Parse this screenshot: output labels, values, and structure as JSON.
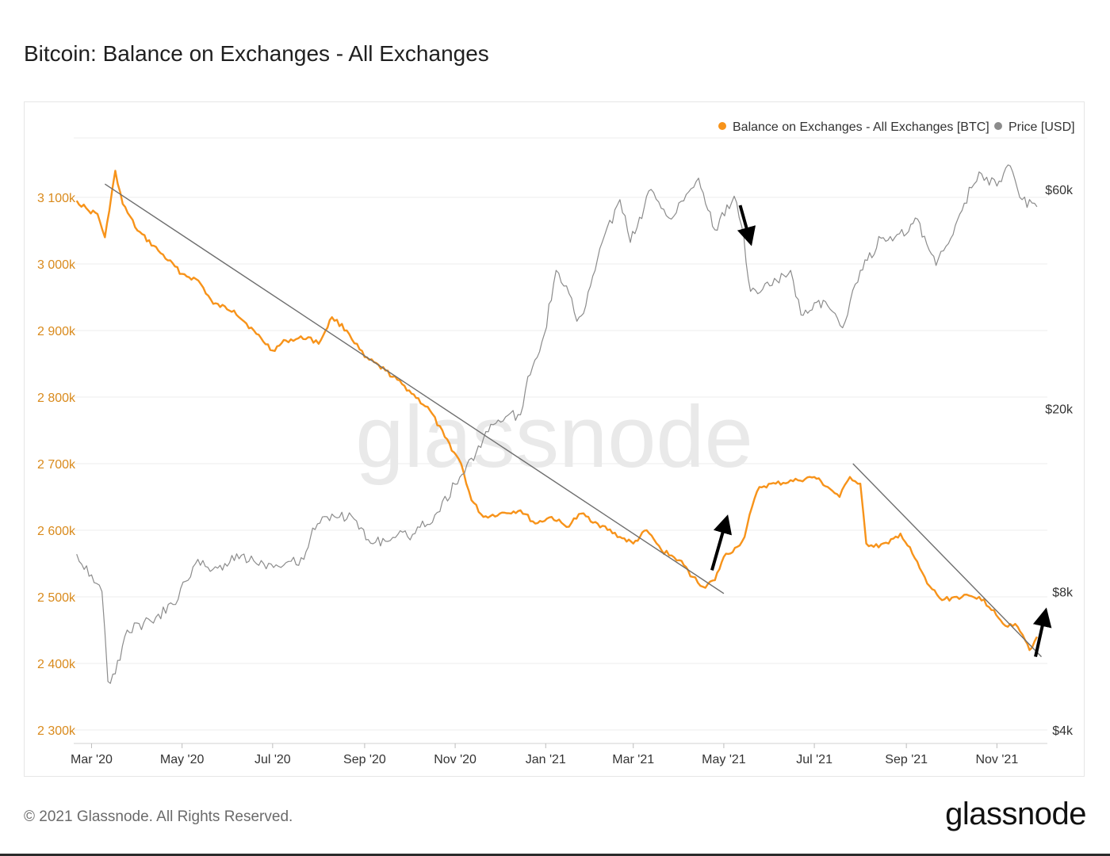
{
  "title": "Bitcoin: Balance on Exchanges - All Exchanges",
  "footer": {
    "copyright": "© 2021 Glassnode. All Rights Reserved.",
    "logo": "glassnode"
  },
  "watermark": "glassnode",
  "colors": {
    "balance": "#f7931a",
    "price": "#8c8c8c",
    "trendline": "#6e6e6e",
    "arrow": "#000000",
    "grid": "#ececec",
    "axis_left": "#d98a1c",
    "axis_right": "#333333"
  },
  "chart_data": {
    "type": "line",
    "title": "Bitcoin: Balance on Exchanges - All Exchanges",
    "legend": [
      {
        "label": "Balance on Exchanges - All Exchanges [BTC]",
        "color": "#f7931a"
      },
      {
        "label": "Price [USD]",
        "color": "#8c8c8c"
      }
    ],
    "legend_position": "top-right",
    "x_ticks": [
      "Mar '20",
      "May '20",
      "Jul '20",
      "Sep '20",
      "Nov '20",
      "Jan '21",
      "Mar '21",
      "May '21",
      "Jul '21",
      "Sep '21",
      "Nov '21"
    ],
    "y_left_ticks": [
      {
        "value": 3100000,
        "label": "3 100k"
      },
      {
        "value": 3000000,
        "label": "3 000k"
      },
      {
        "value": 2900000,
        "label": "2 900k"
      },
      {
        "value": 2800000,
        "label": "2 800k"
      },
      {
        "value": 2700000,
        "label": "2 700k"
      },
      {
        "value": 2600000,
        "label": "2 600k"
      },
      {
        "value": 2500000,
        "label": "2 500k"
      },
      {
        "value": 2400000,
        "label": "2 400k"
      },
      {
        "value": 2300000,
        "label": "2 300k"
      }
    ],
    "y_left_range": [
      2300000,
      3100000
    ],
    "y_right_ticks": [
      {
        "value": 60000,
        "label": "$60k"
      },
      {
        "value": 20000,
        "label": "$20k"
      },
      {
        "value": 8000,
        "label": "$8k"
      },
      {
        "value": 4000,
        "label": "$4k"
      }
    ],
    "y_right_scale": "log",
    "y_right_range": [
      4000,
      60000
    ],
    "grid": true,
    "series": [
      {
        "name": "Balance on Exchanges - All Exchanges [BTC]",
        "axis": "left",
        "points": [
          [
            "2020-02-20",
            3095000
          ],
          [
            "2020-02-28",
            3080000
          ],
          [
            "2020-03-05",
            3075000
          ],
          [
            "2020-03-10",
            3040000
          ],
          [
            "2020-03-13",
            3080000
          ],
          [
            "2020-03-17",
            3140000
          ],
          [
            "2020-03-22",
            3090000
          ],
          [
            "2020-04-01",
            3050000
          ],
          [
            "2020-04-15",
            3020000
          ],
          [
            "2020-05-01",
            2985000
          ],
          [
            "2020-05-12",
            2975000
          ],
          [
            "2020-05-22",
            2940000
          ],
          [
            "2020-06-05",
            2930000
          ],
          [
            "2020-06-20",
            2895000
          ],
          [
            "2020-07-01",
            2870000
          ],
          [
            "2020-07-10",
            2885000
          ],
          [
            "2020-07-25",
            2890000
          ],
          [
            "2020-08-01",
            2880000
          ],
          [
            "2020-08-10",
            2920000
          ],
          [
            "2020-08-20",
            2900000
          ],
          [
            "2020-09-01",
            2860000
          ],
          [
            "2020-09-15",
            2840000
          ],
          [
            "2020-10-01",
            2810000
          ],
          [
            "2020-10-15",
            2780000
          ],
          [
            "2020-10-25",
            2740000
          ],
          [
            "2020-11-05",
            2700000
          ],
          [
            "2020-11-12",
            2645000
          ],
          [
            "2020-11-20",
            2620000
          ],
          [
            "2020-12-01",
            2625000
          ],
          [
            "2020-12-15",
            2630000
          ],
          [
            "2020-12-25",
            2610000
          ],
          [
            "2021-01-05",
            2620000
          ],
          [
            "2021-01-15",
            2605000
          ],
          [
            "2021-01-25",
            2625000
          ],
          [
            "2021-02-05",
            2610000
          ],
          [
            "2021-02-20",
            2590000
          ],
          [
            "2021-03-01",
            2580000
          ],
          [
            "2021-03-10",
            2600000
          ],
          [
            "2021-03-20",
            2570000
          ],
          [
            "2021-04-01",
            2555000
          ],
          [
            "2021-04-10",
            2530000
          ],
          [
            "2021-04-17",
            2515000
          ],
          [
            "2021-04-25",
            2525000
          ],
          [
            "2021-05-01",
            2560000
          ],
          [
            "2021-05-10",
            2575000
          ],
          [
            "2021-05-15",
            2590000
          ],
          [
            "2021-05-20",
            2635000
          ],
          [
            "2021-05-25",
            2665000
          ],
          [
            "2021-06-05",
            2670000
          ],
          [
            "2021-06-20",
            2675000
          ],
          [
            "2021-07-01",
            2680000
          ],
          [
            "2021-07-10",
            2665000
          ],
          [
            "2021-07-18",
            2650000
          ],
          [
            "2021-07-25",
            2680000
          ],
          [
            "2021-08-01",
            2670000
          ],
          [
            "2021-08-05",
            2580000
          ],
          [
            "2021-08-10",
            2575000
          ],
          [
            "2021-08-20",
            2580000
          ],
          [
            "2021-08-28",
            2595000
          ],
          [
            "2021-09-05",
            2565000
          ],
          [
            "2021-09-15",
            2520000
          ],
          [
            "2021-09-25",
            2495000
          ],
          [
            "2021-10-05",
            2500000
          ],
          [
            "2021-10-20",
            2500000
          ],
          [
            "2021-10-30",
            2480000
          ],
          [
            "2021-11-05",
            2460000
          ],
          [
            "2021-11-15",
            2455000
          ],
          [
            "2021-11-20",
            2435000
          ],
          [
            "2021-11-23",
            2420000
          ],
          [
            "2021-11-28",
            2440000
          ]
        ]
      },
      {
        "name": "Price [USD]",
        "axis": "right",
        "points": [
          [
            "2020-02-20",
            9650
          ],
          [
            "2020-03-01",
            8700
          ],
          [
            "2020-03-08",
            8000
          ],
          [
            "2020-03-12",
            5100
          ],
          [
            "2020-03-17",
            5300
          ],
          [
            "2020-03-25",
            6600
          ],
          [
            "2020-04-10",
            6900
          ],
          [
            "2020-04-25",
            7500
          ],
          [
            "2020-05-10",
            9200
          ],
          [
            "2020-05-25",
            9000
          ],
          [
            "2020-06-10",
            9600
          ],
          [
            "2020-06-25",
            9200
          ],
          [
            "2020-07-10",
            9250
          ],
          [
            "2020-07-22",
            9400
          ],
          [
            "2020-07-28",
            11000
          ],
          [
            "2020-08-10",
            11800
          ],
          [
            "2020-08-25",
            11500
          ],
          [
            "2020-09-05",
            10200
          ],
          [
            "2020-09-20",
            10500
          ],
          [
            "2020-10-05",
            10700
          ],
          [
            "2020-10-20",
            11900
          ],
          [
            "2020-11-01",
            13700
          ],
          [
            "2020-11-15",
            16000
          ],
          [
            "2020-11-25",
            18500
          ],
          [
            "2020-12-05",
            19200
          ],
          [
            "2020-12-15",
            19400
          ],
          [
            "2020-12-20",
            23500
          ],
          [
            "2020-12-31",
            29000
          ],
          [
            "2021-01-08",
            40000
          ],
          [
            "2021-01-15",
            37000
          ],
          [
            "2021-01-22",
            31000
          ],
          [
            "2021-01-28",
            33500
          ],
          [
            "2021-02-08",
            46000
          ],
          [
            "2021-02-20",
            57000
          ],
          [
            "2021-02-27",
            46000
          ],
          [
            "2021-03-13",
            60000
          ],
          [
            "2021-03-25",
            52000
          ],
          [
            "2021-04-14",
            63500
          ],
          [
            "2021-04-25",
            49000
          ],
          [
            "2021-05-08",
            58000
          ],
          [
            "2021-05-13",
            50000
          ],
          [
            "2021-05-19",
            36000
          ],
          [
            "2021-06-01",
            37000
          ],
          [
            "2021-06-15",
            40000
          ],
          [
            "2021-06-22",
            32000
          ],
          [
            "2021-07-01",
            34000
          ],
          [
            "2021-07-10",
            33500
          ],
          [
            "2021-07-20",
            30000
          ],
          [
            "2021-08-01",
            40000
          ],
          [
            "2021-08-15",
            47000
          ],
          [
            "2021-09-01",
            48000
          ],
          [
            "2021-09-07",
            52000
          ],
          [
            "2021-09-21",
            41000
          ],
          [
            "2021-10-01",
            47000
          ],
          [
            "2021-10-10",
            56000
          ],
          [
            "2021-10-20",
            65500
          ],
          [
            "2021-11-01",
            61000
          ],
          [
            "2021-11-10",
            67500
          ],
          [
            "2021-11-18",
            57000
          ],
          [
            "2021-11-28",
            55000
          ]
        ]
      }
    ],
    "trendlines": [
      {
        "from": [
          "2020-03-10",
          3120000
        ],
        "to": [
          "2021-05-01",
          2505000
        ]
      },
      {
        "from": [
          "2021-07-27",
          2700000
        ],
        "to": [
          "2021-12-01",
          2410000
        ]
      }
    ],
    "annotations": [
      {
        "type": "arrow",
        "direction": "up",
        "near": [
          "2021-04-25",
          2530000
        ]
      },
      {
        "type": "arrow",
        "direction": "down",
        "near": [
          "2021-05-12",
          "price"
        ]
      },
      {
        "type": "arrow",
        "direction": "up",
        "near": [
          "2021-11-28",
          2430000
        ]
      }
    ]
  }
}
